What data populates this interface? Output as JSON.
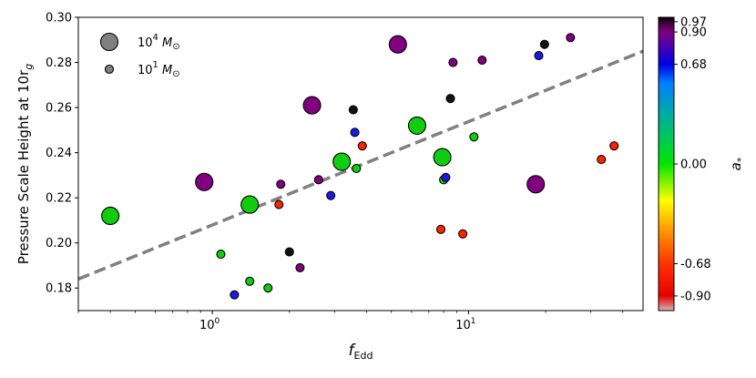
{
  "chart_data": {
    "type": "scatter",
    "x_scale": "log",
    "xlim": [
      0.3,
      48
    ],
    "ylim": [
      0.17,
      0.3
    ],
    "x_ticks": [
      {
        "value": 1,
        "label": "10",
        "exp": "0"
      },
      {
        "value": 10,
        "label": "10",
        "exp": "1"
      }
    ],
    "y_ticks": [
      {
        "value": 0.18,
        "label": "0.18"
      },
      {
        "value": 0.2,
        "label": "0.20"
      },
      {
        "value": 0.22,
        "label": "0.22"
      },
      {
        "value": 0.24,
        "label": "0.24"
      },
      {
        "value": 0.26,
        "label": "0.26"
      },
      {
        "value": 0.28,
        "label": "0.28"
      },
      {
        "value": 0.3,
        "label": "0.30"
      }
    ],
    "xlabel": {
      "main": "f",
      "sub": "Edd"
    },
    "ylabel": {
      "main": "Pressure Scale Height at 10r",
      "sub": "g"
    },
    "grid": false,
    "legend": {
      "placement": "top-left",
      "entries": [
        {
          "label_base": "10",
          "label_exp": "4",
          "label_unit": " M",
          "label_unit_sub": "⊙",
          "size": "large"
        },
        {
          "label_base": "10",
          "label_exp": "1",
          "label_unit": " M",
          "label_unit_sub": "⊙",
          "size": "small"
        }
      ]
    },
    "trend_line": {
      "style": "dashed",
      "color": "#808080",
      "points": [
        [
          0.3,
          0.184
        ],
        [
          48,
          0.285
        ]
      ]
    },
    "colorbar": {
      "label": "a",
      "label_sub": "*",
      "stops": [
        {
          "value": -1.0,
          "color": "#d9b3b3"
        },
        {
          "value": -0.9,
          "color": "#e60000"
        },
        {
          "value": -0.68,
          "color": "#ff3300"
        },
        {
          "value": -0.45,
          "color": "#ff9900"
        },
        {
          "value": -0.25,
          "color": "#ffff00"
        },
        {
          "value": 0.0,
          "color": "#00e600"
        },
        {
          "value": 0.35,
          "color": "#00aaaa"
        },
        {
          "value": 0.55,
          "color": "#0080ff"
        },
        {
          "value": 0.68,
          "color": "#0000e6"
        },
        {
          "value": 0.85,
          "color": "#660099"
        },
        {
          "value": 0.9,
          "color": "#800080"
        },
        {
          "value": 0.97,
          "color": "#330033"
        },
        {
          "value": 1.0,
          "color": "#000000"
        }
      ],
      "ticks": [
        {
          "value": 0.97,
          "label": "0.97"
        },
        {
          "value": 0.9,
          "label": "0.90"
        },
        {
          "value": 0.68,
          "label": "0.68"
        },
        {
          "value": 0.0,
          "label": "0.00"
        },
        {
          "value": -0.68,
          "label": "-0.68"
        },
        {
          "value": -0.9,
          "label": "-0.90"
        }
      ]
    },
    "points": [
      {
        "x": 0.4,
        "y": 0.212,
        "mass": "large",
        "color": "#11cc11"
      },
      {
        "x": 0.93,
        "y": 0.227,
        "mass": "large",
        "color": "#800080"
      },
      {
        "x": 1.4,
        "y": 0.217,
        "mass": "large",
        "color": "#11cc11"
      },
      {
        "x": 2.45,
        "y": 0.261,
        "mass": "large",
        "color": "#800080"
      },
      {
        "x": 3.2,
        "y": 0.236,
        "mass": "large",
        "color": "#11cc11"
      },
      {
        "x": 5.3,
        "y": 0.288,
        "mass": "large",
        "color": "#800080"
      },
      {
        "x": 6.3,
        "y": 0.252,
        "mass": "large",
        "color": "#11cc11"
      },
      {
        "x": 7.9,
        "y": 0.238,
        "mass": "large",
        "color": "#11cc11"
      },
      {
        "x": 18.3,
        "y": 0.226,
        "mass": "large",
        "color": "#800080"
      },
      {
        "x": 1.08,
        "y": 0.195,
        "mass": "small",
        "color": "#11cc11"
      },
      {
        "x": 1.22,
        "y": 0.177,
        "mass": "small",
        "color": "#1a1ae6"
      },
      {
        "x": 1.4,
        "y": 0.183,
        "mass": "small",
        "color": "#11cc11"
      },
      {
        "x": 1.65,
        "y": 0.18,
        "mass": "small",
        "color": "#11cc11"
      },
      {
        "x": 1.82,
        "y": 0.217,
        "mass": "small",
        "color": "#ff2200"
      },
      {
        "x": 1.85,
        "y": 0.226,
        "mass": "small",
        "color": "#800080"
      },
      {
        "x": 2.0,
        "y": 0.196,
        "mass": "small",
        "color": "#111111"
      },
      {
        "x": 2.2,
        "y": 0.189,
        "mass": "small",
        "color": "#800080"
      },
      {
        "x": 2.6,
        "y": 0.228,
        "mass": "small",
        "color": "#800080"
      },
      {
        "x": 2.9,
        "y": 0.221,
        "mass": "small",
        "color": "#1a1ae6"
      },
      {
        "x": 3.55,
        "y": 0.259,
        "mass": "small",
        "color": "#111111"
      },
      {
        "x": 3.6,
        "y": 0.249,
        "mass": "small",
        "color": "#1a1ae6"
      },
      {
        "x": 3.65,
        "y": 0.233,
        "mass": "small",
        "color": "#11cc11"
      },
      {
        "x": 3.85,
        "y": 0.243,
        "mass": "small",
        "color": "#ff2200"
      },
      {
        "x": 7.8,
        "y": 0.206,
        "mass": "small",
        "color": "#ff2200"
      },
      {
        "x": 8.0,
        "y": 0.228,
        "mass": "small",
        "color": "#11cc11"
      },
      {
        "x": 8.15,
        "y": 0.229,
        "mass": "small",
        "color": "#1a1ae6"
      },
      {
        "x": 8.5,
        "y": 0.264,
        "mass": "small",
        "color": "#111111"
      },
      {
        "x": 8.7,
        "y": 0.28,
        "mass": "small",
        "color": "#800080"
      },
      {
        "x": 9.5,
        "y": 0.204,
        "mass": "small",
        "color": "#ff2200"
      },
      {
        "x": 10.5,
        "y": 0.247,
        "mass": "small",
        "color": "#11cc11"
      },
      {
        "x": 11.3,
        "y": 0.281,
        "mass": "small",
        "color": "#800080"
      },
      {
        "x": 18.8,
        "y": 0.283,
        "mass": "small",
        "color": "#1a1ae6"
      },
      {
        "x": 19.8,
        "y": 0.288,
        "mass": "small",
        "color": "#111111"
      },
      {
        "x": 25.0,
        "y": 0.291,
        "mass": "small",
        "color": "#800080"
      },
      {
        "x": 33.0,
        "y": 0.237,
        "mass": "small",
        "color": "#ff2200"
      },
      {
        "x": 37.0,
        "y": 0.243,
        "mass": "small",
        "color": "#ff2200"
      }
    ]
  }
}
